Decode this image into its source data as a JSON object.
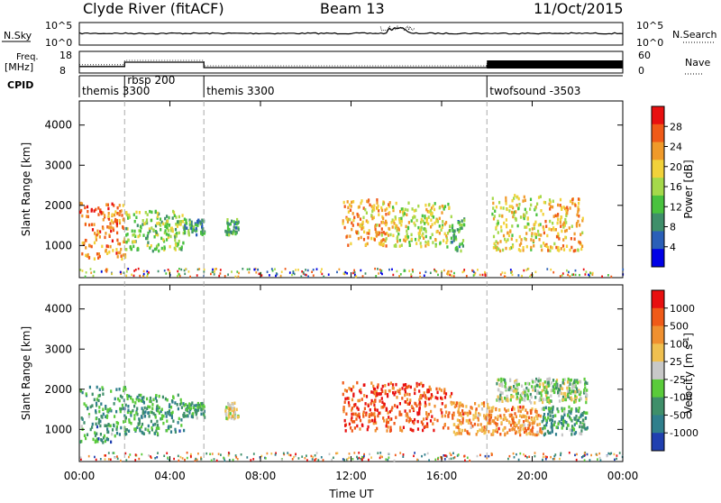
{
  "header": {
    "station": "Clyde River (fitACF)",
    "beam": "Beam 13",
    "date": "11/Oct/2015"
  },
  "summary_panel": {
    "nsky_label": "N.Sky",
    "nsky_ticks": [
      "10^5",
      "10^0"
    ],
    "nsearch_label": "N.Search",
    "nsearch_ticks": [
      "10^5",
      "10^0"
    ],
    "freq_label": "Freq.",
    "freq_unit": "[MHz]",
    "freq_ticks": [
      "18",
      "8"
    ],
    "nave_label": "Nave",
    "nave_ticks": [
      "60",
      "0"
    ],
    "cpid_label": "CPID",
    "cpid_segments": [
      {
        "label": "themis 3300",
        "start": 0.0,
        "end": 2.0
      },
      {
        "label": "rbsp 200",
        "start": 2.0,
        "end": 5.5
      },
      {
        "label": "themis 3300",
        "start": 5.5,
        "end": 18.0
      },
      {
        "label": "twofsound -3503",
        "start": 18.0,
        "end": 24.0
      }
    ],
    "freq_segments": [
      {
        "start": 0.0,
        "end": 2.0,
        "mhz": 11.0
      },
      {
        "start": 2.0,
        "end": 5.5,
        "mhz": 13.0
      },
      {
        "start": 5.5,
        "end": 18.0,
        "mhz": 10.5
      },
      {
        "start": 18.0,
        "end": 24.0,
        "mhz": 11.5
      }
    ]
  },
  "chart_data": [
    {
      "type": "heatmap",
      "name": "power",
      "ylabel": "Slant Range [km]",
      "yticks": [
        "1000",
        "2000",
        "3000",
        "4000"
      ],
      "ylim": [
        200,
        4600
      ],
      "xlim": [
        0,
        24
      ],
      "colorbar_label": "Power [dB]",
      "colorbar_ticks": [
        "28",
        "24",
        "20",
        "16",
        "12",
        "8",
        "4"
      ],
      "colorscale": [
        "#0000e6",
        "#2a5fb8",
        "#3f8f6a",
        "#49c23e",
        "#a5d94a",
        "#f1d23a",
        "#f09a2a",
        "#f05a18",
        "#e81010"
      ],
      "scatter_regions": [
        {
          "t0": 0.0,
          "t1": 2.0,
          "r0": 700,
          "r1": 2100,
          "level": 0.78
        },
        {
          "t0": 2.0,
          "t1": 4.6,
          "r0": 900,
          "r1": 1900,
          "level": 0.45
        },
        {
          "t0": 4.6,
          "t1": 5.5,
          "r0": 1300,
          "r1": 1700,
          "level": 0.3
        },
        {
          "t0": 6.4,
          "t1": 7.0,
          "r0": 1300,
          "r1": 1700,
          "level": 0.35
        },
        {
          "t0": 11.6,
          "t1": 13.7,
          "r0": 1000,
          "r1": 2200,
          "level": 0.7
        },
        {
          "t0": 13.7,
          "t1": 16.4,
          "r0": 1000,
          "r1": 2100,
          "level": 0.55
        },
        {
          "t0": 16.4,
          "t1": 17.0,
          "r0": 900,
          "r1": 1700,
          "level": 0.35
        },
        {
          "t0": 18.2,
          "t1": 20.4,
          "r0": 900,
          "r1": 2300,
          "level": 0.58
        },
        {
          "t0": 20.4,
          "t1": 22.2,
          "r0": 900,
          "r1": 2200,
          "level": 0.68
        }
      ]
    },
    {
      "type": "heatmap",
      "name": "velocity",
      "xlabel": "Time UT",
      "xticks": [
        "00:00",
        "04:00",
        "08:00",
        "12:00",
        "16:00",
        "20:00",
        "00:00"
      ],
      "ylabel": "Slant Range [km]",
      "yticks": [
        "1000",
        "2000",
        "3000",
        "4000"
      ],
      "ylim": [
        200,
        4600
      ],
      "xlim": [
        0,
        24
      ],
      "colorbar_label": "Velocity [m s",
      "colorbar_label_sup": "-1",
      "colorbar_label_end": "]",
      "colorbar_ticks": [
        "1000",
        "500",
        "100",
        "25",
        "-25",
        "-100",
        "-500",
        "-1000"
      ],
      "colorscale": [
        "#2040b0",
        "#307f8c",
        "#3f8f6a",
        "#5acb3a",
        "#c8c8c8",
        "#f0c050",
        "#f09030",
        "#f05a18",
        "#e81010"
      ],
      "scatter_regions": [
        {
          "t0": 0.0,
          "t1": 2.0,
          "r0": 700,
          "r1": 2100,
          "level": 0.28
        },
        {
          "t0": 2.0,
          "t1": 4.6,
          "r0": 900,
          "r1": 1900,
          "level": 0.28
        },
        {
          "t0": 4.6,
          "t1": 5.5,
          "r0": 1300,
          "r1": 1700,
          "level": 0.28
        },
        {
          "t0": 6.4,
          "t1": 7.0,
          "r0": 1300,
          "r1": 1700,
          "level": 0.55
        },
        {
          "t0": 11.6,
          "t1": 16.4,
          "r0": 1000,
          "r1": 2200,
          "level": 0.85
        },
        {
          "t0": 16.4,
          "t1": 18.0,
          "r0": 900,
          "r1": 1700,
          "level": 0.72
        },
        {
          "t0": 18.0,
          "t1": 20.4,
          "r0": 900,
          "r1": 1600,
          "level": 0.72
        },
        {
          "t0": 18.4,
          "t1": 22.4,
          "r0": 1700,
          "r1": 2300,
          "level": 0.45
        },
        {
          "t0": 20.4,
          "t1": 22.4,
          "r0": 900,
          "r1": 1600,
          "level": 0.3
        }
      ]
    }
  ]
}
